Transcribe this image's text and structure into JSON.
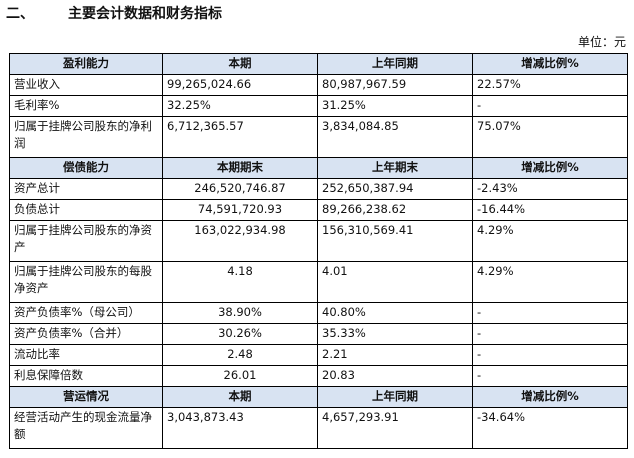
{
  "heading": {
    "number": "二、",
    "title": "主要会计数据和财务指标"
  },
  "unit_label": "单位：元",
  "sections": [
    {
      "header": [
        "盈利能力",
        "本期",
        "上年同期",
        "增减比例%"
      ],
      "rows": [
        [
          "营业收入",
          "99,265,024.66",
          "80,987,967.59",
          "22.57%"
        ],
        [
          "毛利率%",
          "32.25%",
          "31.25%",
          "-"
        ],
        [
          "归属于挂牌公司股东的净利润",
          "6,712,365.57",
          "3,834,084.85",
          "75.07%"
        ]
      ]
    },
    {
      "header": [
        "偿债能力",
        "本期期末",
        "上年期末",
        "增减比例%"
      ],
      "rows": [
        [
          "资产总计",
          "246,520,746.87",
          "252,650,387.94",
          "-2.43%"
        ],
        [
          "负债总计",
          "74,591,720.93",
          "89,266,238.62",
          "-16.44%"
        ],
        [
          "归属于挂牌公司股东的净资产",
          "163,022,934.98",
          "156,310,569.41",
          "4.29%"
        ],
        [
          "归属于挂牌公司股东的每股净资产",
          "4.18",
          "4.01",
          "4.29%"
        ],
        [
          "资产负债率%（母公司）",
          "38.90%",
          "40.80%",
          "-"
        ],
        [
          "资产负债率%（合并）",
          "30.26%",
          "35.33%",
          "-"
        ],
        [
          "流动比率",
          "2.48",
          "2.21",
          "-"
        ],
        [
          "利息保障倍数",
          "26.01",
          "20.83",
          "-"
        ]
      ]
    },
    {
      "header": [
        "营运情况",
        "本期",
        "上年同期",
        "增减比例%"
      ],
      "rows": [
        [
          "经营活动产生的现金流量净额",
          "3,043,873.43",
          "4,657,293.91",
          "-34.64%"
        ]
      ]
    }
  ]
}
